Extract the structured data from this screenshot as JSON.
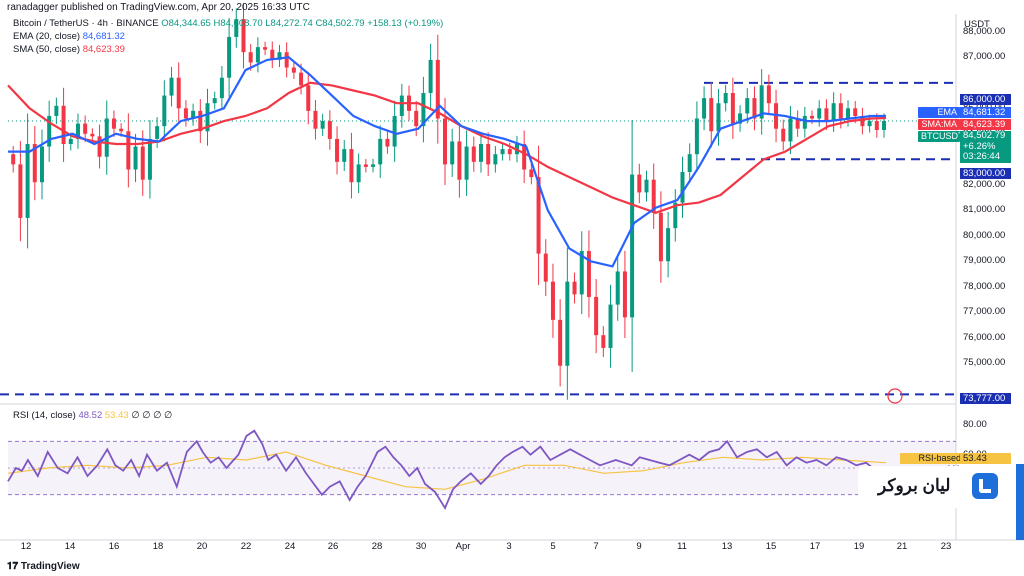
{
  "header": {
    "published": "ranadagger published on TradingView.com, Apr 20, 2025 16:33 UTC",
    "symbol": "Bitcoin / TetherUS · 4h · BINANCE",
    "open": "O84,344.65",
    "high": "H84,608.70",
    "low": "L84,272.74",
    "close": "C84,502.79",
    "change": "+158.13 (+0.19%)",
    "ema_label": "EMA (20, close)",
    "ema_value": "84,681.32",
    "sma_label": "SMA (50, close)",
    "sma_value": "84,623.39",
    "rsi_label": "RSI (14, close)",
    "rsi_value": "48.52",
    "rsi_ma_value": "53.43",
    "rsi_extra": "∅ ∅ ∅ ∅"
  },
  "axis": {
    "currency": "USDT",
    "price_ticks": [
      "88,000.00",
      "87,000.00",
      "86,000.00",
      "85,000.00",
      "84,000.00",
      "83,000.00",
      "82,000.00",
      "81,000.00",
      "80,000.00",
      "79,000.00",
      "78,000.00",
      "77,000.00",
      "76,000.00",
      "75,000.00",
      "73,777.00"
    ],
    "rsi_ticks": [
      "80.00",
      "60.00"
    ],
    "x_ticks": [
      "12",
      "14",
      "16",
      "18",
      "20",
      "22",
      "24",
      "26",
      "28",
      "30",
      "Apr",
      "3",
      "5",
      "7",
      "9",
      "11",
      "13",
      "15",
      "17",
      "19",
      "21",
      "23"
    ]
  },
  "badges": {
    "ema_name": "EMA",
    "ema_val": "84,681.32",
    "sma_name": "SMA:MA",
    "sma_val": "84,623.39",
    "sym_name": "BTCUSDT",
    "sym_val": "84,502.79",
    "sym_chg": "+6.26%",
    "countdown": "03:26:44",
    "rsi_ma_name": "RSI-based MA",
    "rsi_ma_val": "53.43",
    "lvl_86": "86,000.00",
    "lvl_83": "83,000.00",
    "lvl_73": "73,777.00"
  },
  "colors": {
    "up": "#089981",
    "down": "#f23645",
    "ema": "#2962ff",
    "sma": "#f23645",
    "rsi": "#7e57c2",
    "rsi_ma": "#f6c343",
    "level": "#1b2fb3"
  },
  "branding": {
    "tv": "TradingView",
    "broker": "لیان بروکر"
  },
  "chart_data": {
    "type": "candlestick",
    "interval": "4h",
    "y_range": [
      73400,
      88700
    ],
    "x_labels": [
      "12",
      "14",
      "16",
      "18",
      "20",
      "22",
      "24",
      "26",
      "28",
      "30",
      "Apr",
      "3",
      "5",
      "7",
      "9",
      "11",
      "13",
      "15",
      "17",
      "19",
      "21",
      "23"
    ],
    "horizontal_levels": [
      86000,
      83000,
      73777
    ],
    "price_path": [
      [
        0,
        83200
      ],
      [
        4,
        82800
      ],
      [
        8,
        80700
      ],
      [
        12,
        83600
      ],
      [
        16,
        82100
      ],
      [
        20,
        83500
      ],
      [
        24,
        84700
      ],
      [
        28,
        85100
      ],
      [
        32,
        83600
      ],
      [
        36,
        83800
      ],
      [
        40,
        84400
      ],
      [
        44,
        84000
      ],
      [
        48,
        83900
      ],
      [
        52,
        83100
      ],
      [
        56,
        84600
      ],
      [
        60,
        84200
      ],
      [
        64,
        84100
      ],
      [
        68,
        82600
      ],
      [
        72,
        83500
      ],
      [
        76,
        82200
      ],
      [
        80,
        83800
      ],
      [
        84,
        84300
      ],
      [
        88,
        85500
      ],
      [
        92,
        86200
      ],
      [
        96,
        85000
      ],
      [
        100,
        84600
      ],
      [
        104,
        84900
      ],
      [
        108,
        84100
      ],
      [
        112,
        85200
      ],
      [
        116,
        85400
      ],
      [
        120,
        86200
      ],
      [
        124,
        87800
      ],
      [
        128,
        88500
      ],
      [
        132,
        87200
      ],
      [
        136,
        86800
      ],
      [
        140,
        87400
      ],
      [
        144,
        87300
      ],
      [
        148,
        86900
      ],
      [
        152,
        87200
      ],
      [
        156,
        86600
      ],
      [
        160,
        86400
      ],
      [
        164,
        85900
      ],
      [
        168,
        84900
      ],
      [
        172,
        84200
      ],
      [
        176,
        84500
      ],
      [
        180,
        83800
      ],
      [
        184,
        82900
      ],
      [
        188,
        83400
      ],
      [
        192,
        82100
      ],
      [
        196,
        82800
      ],
      [
        200,
        82700
      ],
      [
        204,
        82800
      ],
      [
        208,
        83800
      ],
      [
        212,
        83500
      ],
      [
        216,
        84700
      ],
      [
        220,
        85500
      ],
      [
        224,
        84900
      ],
      [
        228,
        84300
      ],
      [
        232,
        85600
      ],
      [
        236,
        86900
      ],
      [
        240,
        84600
      ],
      [
        244,
        82800
      ],
      [
        248,
        83700
      ],
      [
        252,
        82200
      ],
      [
        256,
        83500
      ],
      [
        260,
        82900
      ],
      [
        264,
        83600
      ],
      [
        268,
        82800
      ],
      [
        272,
        83200
      ],
      [
        276,
        83400
      ],
      [
        280,
        83200
      ],
      [
        284,
        83600
      ],
      [
        288,
        82600
      ],
      [
        292,
        82300
      ],
      [
        296,
        79300
      ],
      [
        300,
        78200
      ],
      [
        304,
        76700
      ],
      [
        308,
        74900
      ],
      [
        312,
        78200
      ],
      [
        316,
        77700
      ],
      [
        320,
        79400
      ],
      [
        324,
        77600
      ],
      [
        328,
        76100
      ],
      [
        332,
        75600
      ],
      [
        336,
        77300
      ],
      [
        340,
        78600
      ],
      [
        344,
        76800
      ],
      [
        348,
        82400
      ],
      [
        352,
        81700
      ],
      [
        356,
        82200
      ],
      [
        360,
        80900
      ],
      [
        364,
        79000
      ],
      [
        368,
        80300
      ],
      [
        372,
        81300
      ],
      [
        376,
        82500
      ],
      [
        380,
        83200
      ],
      [
        384,
        84600
      ],
      [
        388,
        85400
      ],
      [
        392,
        84100
      ],
      [
        396,
        85200
      ],
      [
        400,
        85600
      ],
      [
        404,
        84400
      ],
      [
        408,
        84800
      ],
      [
        412,
        85400
      ],
      [
        416,
        84600
      ],
      [
        420,
        85900
      ],
      [
        424,
        85200
      ],
      [
        428,
        84200
      ],
      [
        432,
        83700
      ],
      [
        436,
        84600
      ],
      [
        440,
        84200
      ],
      [
        444,
        84700
      ],
      [
        448,
        84600
      ],
      [
        452,
        85000
      ],
      [
        456,
        84500
      ],
      [
        460,
        85200
      ],
      [
        464,
        84600
      ],
      [
        468,
        85000
      ],
      [
        472,
        84700
      ],
      [
        476,
        84300
      ],
      [
        480,
        84500
      ],
      [
        484,
        84150
      ],
      [
        488,
        84500
      ]
    ],
    "ema20_path": [
      [
        0,
        83300
      ],
      [
        12,
        83300
      ],
      [
        24,
        83800
      ],
      [
        36,
        84000
      ],
      [
        48,
        83600
      ],
      [
        60,
        84000
      ],
      [
        72,
        83800
      ],
      [
        84,
        83700
      ],
      [
        96,
        84500
      ],
      [
        108,
        84700
      ],
      [
        120,
        85000
      ],
      [
        132,
        86500
      ],
      [
        144,
        86900
      ],
      [
        156,
        87000
      ],
      [
        168,
        86300
      ],
      [
        180,
        85500
      ],
      [
        192,
        84700
      ],
      [
        204,
        84300
      ],
      [
        216,
        84000
      ],
      [
        228,
        84200
      ],
      [
        240,
        85100
      ],
      [
        252,
        84300
      ],
      [
        264,
        84000
      ],
      [
        276,
        83800
      ],
      [
        288,
        83500
      ],
      [
        300,
        81000
      ],
      [
        312,
        79500
      ],
      [
        324,
        79000
      ],
      [
        336,
        78800
      ],
      [
        348,
        80500
      ],
      [
        360,
        81100
      ],
      [
        372,
        81400
      ],
      [
        384,
        82700
      ],
      [
        396,
        84200
      ],
      [
        408,
        84500
      ],
      [
        420,
        84800
      ],
      [
        432,
        84700
      ],
      [
        444,
        84500
      ],
      [
        456,
        84500
      ],
      [
        468,
        84600
      ],
      [
        480,
        84700
      ],
      [
        488,
        84700
      ]
    ],
    "sma50_path": [
      [
        0,
        85900
      ],
      [
        12,
        85000
      ],
      [
        24,
        84400
      ],
      [
        36,
        83900
      ],
      [
        48,
        83700
      ],
      [
        60,
        83600
      ],
      [
        72,
        83600
      ],
      [
        84,
        83700
      ],
      [
        96,
        84000
      ],
      [
        108,
        84200
      ],
      [
        120,
        84500
      ],
      [
        132,
        84700
      ],
      [
        144,
        85000
      ],
      [
        156,
        85600
      ],
      [
        168,
        86000
      ],
      [
        180,
        85900
      ],
      [
        192,
        85700
      ],
      [
        204,
        85500
      ],
      [
        216,
        85200
      ],
      [
        228,
        85200
      ],
      [
        240,
        84800
      ],
      [
        252,
        84300
      ],
      [
        264,
        83900
      ],
      [
        276,
        83600
      ],
      [
        288,
        83200
      ],
      [
        300,
        82700
      ],
      [
        312,
        82300
      ],
      [
        324,
        81900
      ],
      [
        336,
        81500
      ],
      [
        348,
        81200
      ],
      [
        360,
        80900
      ],
      [
        372,
        81200
      ],
      [
        384,
        81300
      ],
      [
        396,
        81600
      ],
      [
        408,
        82300
      ],
      [
        420,
        83000
      ],
      [
        432,
        83300
      ],
      [
        444,
        83800
      ],
      [
        456,
        84300
      ],
      [
        468,
        84500
      ],
      [
        480,
        84600
      ],
      [
        488,
        84620
      ]
    ],
    "rsi_range": [
      0,
      100
    ],
    "rsi_path": [
      [
        0,
        40
      ],
      [
        8,
        50
      ],
      [
        14,
        48
      ],
      [
        20,
        56
      ],
      [
        30,
        44
      ],
      [
        40,
        62
      ],
      [
        50,
        50
      ],
      [
        60,
        46
      ],
      [
        70,
        58
      ],
      [
        80,
        44
      ],
      [
        90,
        52
      ],
      [
        100,
        64
      ],
      [
        108,
        52
      ],
      [
        116,
        48
      ],
      [
        124,
        56
      ],
      [
        132,
        44
      ],
      [
        140,
        60
      ],
      [
        150,
        48
      ],
      [
        160,
        54
      ],
      [
        170,
        36
      ],
      [
        180,
        62
      ],
      [
        190,
        70
      ],
      [
        196,
        62
      ],
      [
        204,
        54
      ],
      [
        212,
        58
      ],
      [
        220,
        50
      ],
      [
        232,
        60
      ],
      [
        240,
        74
      ],
      [
        248,
        78
      ],
      [
        256,
        68
      ],
      [
        262,
        56
      ],
      [
        270,
        60
      ],
      [
        280,
        48
      ],
      [
        290,
        58
      ],
      [
        300,
        46
      ],
      [
        308,
        38
      ],
      [
        316,
        30
      ],
      [
        324,
        36
      ],
      [
        334,
        40
      ],
      [
        344,
        26
      ],
      [
        352,
        36
      ],
      [
        360,
        44
      ],
      [
        372,
        62
      ],
      [
        380,
        66
      ],
      [
        388,
        58
      ],
      [
        396,
        52
      ],
      [
        404,
        44
      ],
      [
        412,
        50
      ],
      [
        420,
        38
      ],
      [
        430,
        32
      ],
      [
        440,
        20
      ],
      [
        448,
        34
      ],
      [
        456,
        40
      ],
      [
        466,
        46
      ],
      [
        476,
        38
      ],
      [
        484,
        44
      ],
      [
        492,
        52
      ],
      [
        500,
        58
      ],
      [
        508,
        62
      ],
      [
        518,
        66
      ],
      [
        526,
        60
      ],
      [
        536,
        66
      ],
      [
        546,
        56
      ],
      [
        556,
        60
      ],
      [
        566,
        64
      ],
      [
        576,
        60
      ],
      [
        586,
        56
      ],
      [
        596,
        52
      ],
      [
        604,
        54
      ],
      [
        612,
        56
      ],
      [
        620,
        54
      ],
      [
        628,
        52
      ],
      [
        636,
        58
      ],
      [
        646,
        56
      ],
      [
        656,
        54
      ],
      [
        666,
        52
      ],
      [
        676,
        56
      ],
      [
        686,
        60
      ],
      [
        696,
        56
      ],
      [
        706,
        62
      ],
      [
        716,
        64
      ],
      [
        724,
        70
      ],
      [
        734,
        58
      ],
      [
        744,
        62
      ],
      [
        754,
        64
      ],
      [
        764,
        58
      ],
      [
        774,
        62
      ],
      [
        784,
        52
      ],
      [
        794,
        58
      ],
      [
        804,
        54
      ],
      [
        814,
        56
      ],
      [
        824,
        52
      ],
      [
        834,
        58
      ],
      [
        844,
        56
      ],
      [
        854,
        52
      ],
      [
        864,
        54
      ],
      [
        874,
        48
      ],
      [
        884,
        50
      ]
    ],
    "rsi_ma_path": [
      [
        0,
        46
      ],
      [
        40,
        50
      ],
      [
        80,
        52
      ],
      [
        120,
        50
      ],
      [
        160,
        52
      ],
      [
        200,
        58
      ],
      [
        240,
        56
      ],
      [
        280,
        62
      ],
      [
        320,
        52
      ],
      [
        360,
        44
      ],
      [
        400,
        36
      ],
      [
        440,
        34
      ],
      [
        480,
        42
      ],
      [
        520,
        52
      ],
      [
        560,
        52
      ],
      [
        600,
        46
      ],
      [
        640,
        48
      ],
      [
        680,
        54
      ],
      [
        720,
        58
      ],
      [
        760,
        56
      ],
      [
        800,
        58
      ],
      [
        840,
        56
      ],
      [
        884,
        54
      ]
    ]
  }
}
